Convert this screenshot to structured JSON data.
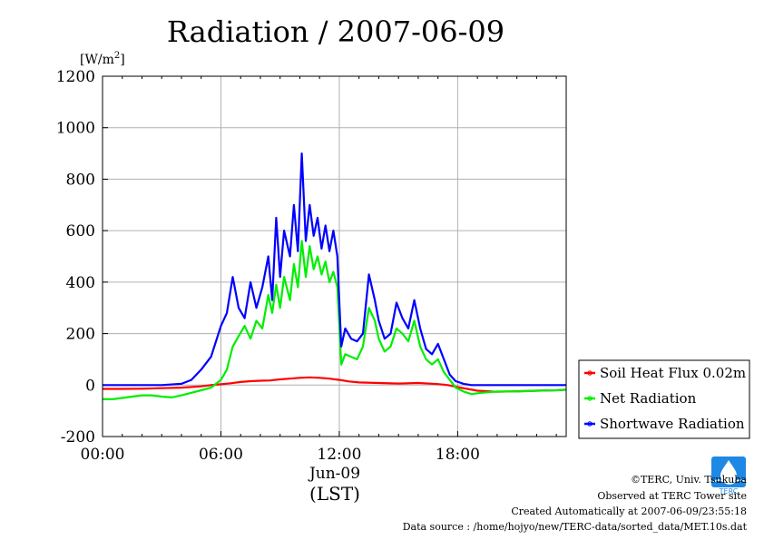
{
  "chart_data": {
    "type": "line",
    "title": "Radiation / 2007-06-09",
    "ylabel": "[W/m",
    "ylabel_sup": "2",
    "ylabel_close": "]",
    "xlabel": "(LST)",
    "x_date_label": "Jun-09",
    "xlim": [
      0,
      23.5
    ],
    "ylim": [
      -200,
      1200
    ],
    "yticks": [
      "-200",
      "0",
      "200",
      "400",
      "600",
      "800",
      "1000",
      "1200"
    ],
    "xticks": [
      {
        "hour": 0,
        "label": "00:00"
      },
      {
        "hour": 6,
        "label": "06:00"
      },
      {
        "hour": 12,
        "label": "12:00"
      },
      {
        "hour": 18,
        "label": "18:00"
      }
    ],
    "grid": true,
    "legend_position": "right",
    "series": [
      {
        "name": "Soil Heat Flux 0.02m",
        "color": "#ff0000",
        "x": [
          0,
          1,
          2,
          3,
          4,
          5,
          5.5,
          6,
          6.5,
          7,
          7.5,
          8,
          8.5,
          9,
          9.5,
          10,
          10.5,
          11,
          11.5,
          12,
          12.5,
          13,
          14,
          15,
          16,
          17,
          17.5,
          18,
          19,
          20,
          21,
          22,
          23,
          23.5
        ],
        "y": [
          -15,
          -15,
          -14,
          -12,
          -10,
          -5,
          0,
          3,
          7,
          12,
          15,
          17,
          18,
          22,
          25,
          28,
          30,
          28,
          25,
          20,
          14,
          10,
          8,
          6,
          8,
          4,
          0,
          -8,
          -22,
          -26,
          -24,
          -22,
          -20,
          -18
        ]
      },
      {
        "name": "Net Radiation",
        "color": "#00ee00",
        "x": [
          0,
          0.5,
          1,
          1.5,
          2,
          2.5,
          3,
          3.5,
          4,
          4.5,
          5,
          5.5,
          6,
          6.3,
          6.6,
          6.9,
          7.2,
          7.5,
          7.8,
          8.1,
          8.4,
          8.6,
          8.8,
          9.0,
          9.2,
          9.5,
          9.7,
          9.9,
          10.1,
          10.3,
          10.5,
          10.7,
          10.9,
          11.1,
          11.3,
          11.5,
          11.7,
          11.9,
          12.1,
          12.3,
          12.6,
          12.9,
          13.2,
          13.5,
          13.8,
          14.0,
          14.3,
          14.6,
          14.9,
          15.2,
          15.5,
          15.8,
          16.1,
          16.4,
          16.7,
          17.0,
          17.3,
          17.6,
          17.9,
          18.3,
          18.7,
          19.2,
          20,
          21,
          22,
          23,
          23.5
        ],
        "y": [
          -55,
          -55,
          -50,
          -45,
          -40,
          -40,
          -45,
          -48,
          -40,
          -30,
          -20,
          -10,
          20,
          60,
          150,
          190,
          230,
          180,
          250,
          220,
          350,
          280,
          390,
          300,
          420,
          330,
          470,
          380,
          560,
          420,
          540,
          450,
          500,
          430,
          480,
          400,
          440,
          380,
          80,
          120,
          110,
          100,
          150,
          300,
          250,
          180,
          130,
          150,
          220,
          200,
          170,
          250,
          150,
          100,
          80,
          100,
          50,
          20,
          -10,
          -25,
          -35,
          -30,
          -25,
          -25,
          -22,
          -20,
          -18
        ]
      },
      {
        "name": "Shortwave Radiation",
        "color": "#0000ff",
        "x": [
          0,
          1,
          2,
          3,
          4,
          4.5,
          5,
          5.5,
          6,
          6.3,
          6.6,
          6.9,
          7.2,
          7.5,
          7.8,
          8.1,
          8.4,
          8.6,
          8.8,
          9.0,
          9.2,
          9.5,
          9.7,
          9.9,
          10.1,
          10.3,
          10.5,
          10.7,
          10.9,
          11.1,
          11.3,
          11.5,
          11.7,
          11.9,
          12.1,
          12.3,
          12.6,
          12.9,
          13.2,
          13.5,
          13.8,
          14.0,
          14.3,
          14.6,
          14.9,
          15.2,
          15.5,
          15.8,
          16.1,
          16.4,
          16.7,
          17.0,
          17.3,
          17.6,
          17.9,
          18.3,
          18.7,
          19.2,
          20,
          21,
          22,
          23,
          23.5
        ],
        "y": [
          0,
          0,
          0,
          0,
          5,
          20,
          60,
          110,
          230,
          280,
          420,
          300,
          260,
          400,
          300,
          380,
          500,
          330,
          650,
          420,
          600,
          500,
          700,
          520,
          900,
          560,
          700,
          580,
          650,
          530,
          620,
          520,
          600,
          500,
          150,
          220,
          180,
          170,
          200,
          430,
          330,
          250,
          180,
          200,
          320,
          260,
          220,
          330,
          220,
          140,
          120,
          160,
          100,
          40,
          15,
          5,
          0,
          0,
          0,
          0,
          0,
          0,
          0
        ]
      }
    ]
  },
  "footer": {
    "copyright": "©TERC, Univ. Tsukuba",
    "observed": "Observed at TERC Tower site",
    "created": "Created Automatically at 2007-06-09/23:55:18",
    "source": "Data source : /home/hojyo/new/TERC-data/sorted_data/MET.10s.dat",
    "logo_text": "TERC"
  }
}
